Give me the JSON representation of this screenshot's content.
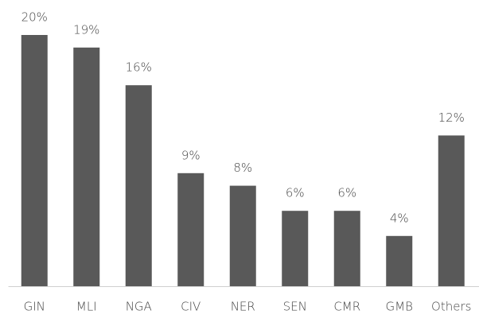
{
  "chart_data": {
    "type": "bar",
    "categories": [
      "GIN",
      "MLI",
      "NGA",
      "CIV",
      "NER",
      "SEN",
      "CMR",
      "GMB",
      "Others"
    ],
    "values": [
      20,
      19,
      16,
      9,
      8,
      6,
      6,
      4,
      12
    ],
    "value_labels": [
      "20%",
      "19%",
      "16%",
      "9%",
      "8%",
      "6%",
      "6%",
      "4%",
      "12%"
    ],
    "color": "#595959"
  }
}
